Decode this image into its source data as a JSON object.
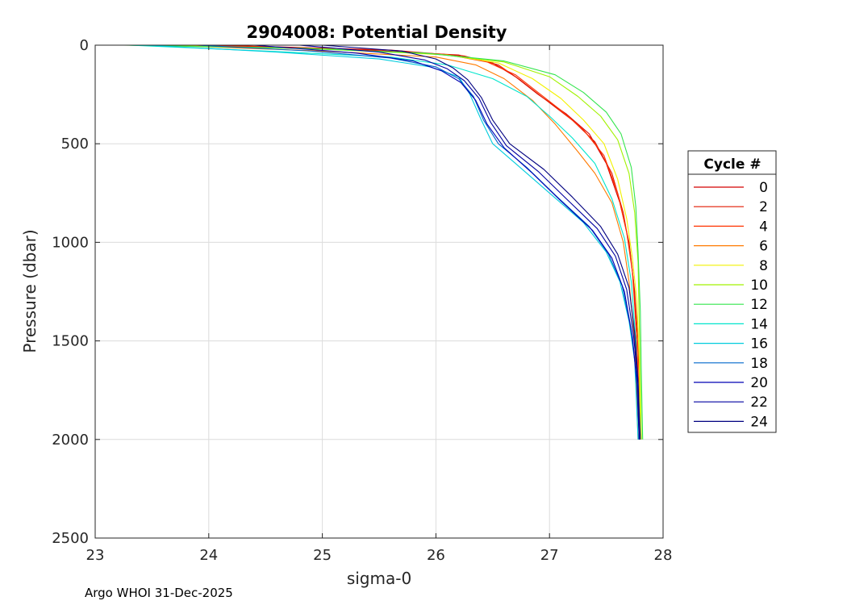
{
  "chart_data": {
    "type": "line",
    "title": "2904008: Potential Density",
    "xlabel": "sigma-0",
    "ylabel": "Pressure (dbar)",
    "xlim": [
      23,
      28
    ],
    "ylim": [
      0,
      2500
    ],
    "y_reversed": true,
    "xticks": [
      "23",
      "24",
      "25",
      "26",
      "27",
      "28"
    ],
    "yticks": [
      "0",
      "500",
      "1000",
      "1500",
      "2000",
      "2500"
    ],
    "grid": true,
    "legend": {
      "title": "Cycle #",
      "position": "right-outside",
      "entries": [
        "0",
        "2",
        "4",
        "6",
        "8",
        "10",
        "12",
        "14",
        "16",
        "18",
        "20",
        "22",
        "24"
      ]
    },
    "series": [
      {
        "name": "0",
        "color": "#d40000",
        "points": [
          [
            23.9,
            0
          ],
          [
            25.4,
            25
          ],
          [
            26.2,
            50
          ],
          [
            26.5,
            90
          ],
          [
            26.7,
            160
          ],
          [
            26.9,
            250
          ],
          [
            27.15,
            350
          ],
          [
            27.35,
            450
          ],
          [
            27.5,
            600
          ],
          [
            27.62,
            800
          ],
          [
            27.7,
            1000
          ],
          [
            27.74,
            1200
          ],
          [
            27.77,
            1500
          ],
          [
            27.79,
            2000
          ]
        ]
      },
      {
        "name": "2",
        "color": "#e31a00",
        "points": [
          [
            24.1,
            0
          ],
          [
            25.6,
            25
          ],
          [
            26.25,
            55
          ],
          [
            26.55,
            100
          ],
          [
            26.75,
            180
          ],
          [
            26.95,
            270
          ],
          [
            27.2,
            380
          ],
          [
            27.4,
            490
          ],
          [
            27.55,
            650
          ],
          [
            27.65,
            850
          ],
          [
            27.71,
            1050
          ],
          [
            27.75,
            1250
          ],
          [
            27.78,
            1500
          ],
          [
            27.8,
            2000
          ]
        ]
      },
      {
        "name": "4",
        "color": "#ff3300",
        "points": [
          [
            23.8,
            0
          ],
          [
            25.2,
            22
          ],
          [
            26.1,
            48
          ],
          [
            26.45,
            85
          ],
          [
            26.7,
            150
          ],
          [
            26.9,
            240
          ],
          [
            27.1,
            330
          ],
          [
            27.3,
            430
          ],
          [
            27.48,
            560
          ],
          [
            27.6,
            750
          ],
          [
            27.68,
            950
          ],
          [
            27.73,
            1150
          ],
          [
            27.77,
            1500
          ],
          [
            27.79,
            2000
          ]
        ]
      },
      {
        "name": "6",
        "color": "#ff7a00",
        "points": [
          [
            23.6,
            0
          ],
          [
            25.0,
            30
          ],
          [
            26.0,
            60
          ],
          [
            26.35,
            100
          ],
          [
            26.6,
            170
          ],
          [
            26.85,
            280
          ],
          [
            27.05,
            400
          ],
          [
            27.25,
            540
          ],
          [
            27.4,
            650
          ],
          [
            27.55,
            800
          ],
          [
            27.65,
            1000
          ],
          [
            27.7,
            1200
          ],
          [
            27.75,
            1500
          ],
          [
            27.78,
            2000
          ]
        ]
      },
      {
        "name": "8",
        "color": "#f2f200",
        "points": [
          [
            23.5,
            0
          ],
          [
            25.1,
            20
          ],
          [
            26.1,
            50
          ],
          [
            26.55,
            90
          ],
          [
            26.85,
            170
          ],
          [
            27.1,
            270
          ],
          [
            27.3,
            380
          ],
          [
            27.48,
            500
          ],
          [
            27.6,
            680
          ],
          [
            27.68,
            880
          ],
          [
            27.73,
            1080
          ],
          [
            27.77,
            1300
          ],
          [
            27.79,
            1600
          ],
          [
            27.8,
            2000
          ]
        ]
      },
      {
        "name": "10",
        "color": "#a2f200",
        "points": [
          [
            23.3,
            0
          ],
          [
            24.9,
            18
          ],
          [
            26.0,
            45
          ],
          [
            26.6,
            85
          ],
          [
            27.0,
            160
          ],
          [
            27.25,
            260
          ],
          [
            27.45,
            360
          ],
          [
            27.6,
            480
          ],
          [
            27.7,
            650
          ],
          [
            27.75,
            850
          ],
          [
            27.78,
            1100
          ],
          [
            27.79,
            1400
          ],
          [
            27.8,
            1700
          ],
          [
            27.81,
            2000
          ]
        ]
      },
      {
        "name": "12",
        "color": "#33e54d",
        "points": [
          [
            23.25,
            0
          ],
          [
            24.8,
            15
          ],
          [
            25.9,
            40
          ],
          [
            26.6,
            80
          ],
          [
            27.05,
            150
          ],
          [
            27.3,
            240
          ],
          [
            27.5,
            340
          ],
          [
            27.63,
            450
          ],
          [
            27.72,
            620
          ],
          [
            27.76,
            820
          ],
          [
            27.78,
            1050
          ],
          [
            27.8,
            1350
          ],
          [
            27.81,
            1700
          ],
          [
            27.82,
            2000
          ]
        ]
      },
      {
        "name": "14",
        "color": "#00e5cc",
        "points": [
          [
            23.3,
            0
          ],
          [
            24.5,
            30
          ],
          [
            25.6,
            60
          ],
          [
            26.1,
            100
          ],
          [
            26.5,
            170
          ],
          [
            26.8,
            260
          ],
          [
            27.0,
            360
          ],
          [
            27.2,
            470
          ],
          [
            27.4,
            600
          ],
          [
            27.55,
            780
          ],
          [
            27.66,
            980
          ],
          [
            27.72,
            1200
          ],
          [
            27.76,
            1500
          ],
          [
            27.79,
            2000
          ]
        ]
      },
      {
        "name": "16",
        "color": "#00ccdd",
        "points": [
          [
            23.45,
            0
          ],
          [
            24.6,
            35
          ],
          [
            25.5,
            70
          ],
          [
            25.95,
            110
          ],
          [
            26.2,
            160
          ],
          [
            26.3,
            250
          ],
          [
            26.4,
            380
          ],
          [
            26.5,
            500
          ],
          [
            26.7,
            600
          ],
          [
            27.0,
            750
          ],
          [
            27.3,
            900
          ],
          [
            27.5,
            1050
          ],
          [
            27.62,
            1200
          ],
          [
            27.7,
            1400
          ],
          [
            27.75,
            1600
          ],
          [
            27.78,
            2000
          ]
        ]
      },
      {
        "name": "18",
        "color": "#0066cc",
        "points": [
          [
            23.9,
            0
          ],
          [
            24.9,
            30
          ],
          [
            25.6,
            65
          ],
          [
            26.0,
            110
          ],
          [
            26.2,
            170
          ],
          [
            26.33,
            260
          ],
          [
            26.42,
            380
          ],
          [
            26.55,
            500
          ],
          [
            26.8,
            620
          ],
          [
            27.05,
            760
          ],
          [
            27.35,
            920
          ],
          [
            27.52,
            1060
          ],
          [
            27.64,
            1220
          ],
          [
            27.72,
            1450
          ],
          [
            27.77,
            1700
          ],
          [
            27.79,
            2000
          ]
        ]
      },
      {
        "name": "20",
        "color": "#0000b3",
        "points": [
          [
            24.4,
            0
          ],
          [
            25.3,
            40
          ],
          [
            25.8,
            80
          ],
          [
            26.05,
            130
          ],
          [
            26.22,
            190
          ],
          [
            26.35,
            280
          ],
          [
            26.45,
            400
          ],
          [
            26.6,
            520
          ],
          [
            26.85,
            650
          ],
          [
            27.1,
            790
          ],
          [
            27.38,
            940
          ],
          [
            27.55,
            1080
          ],
          [
            27.66,
            1250
          ],
          [
            27.73,
            1480
          ],
          [
            27.77,
            1720
          ],
          [
            27.79,
            2000
          ]
        ]
      },
      {
        "name": "22",
        "color": "#0000a0",
        "points": [
          [
            24.8,
            0
          ],
          [
            25.5,
            35
          ],
          [
            25.9,
            75
          ],
          [
            26.1,
            120
          ],
          [
            26.25,
            180
          ],
          [
            26.38,
            270
          ],
          [
            26.48,
            390
          ],
          [
            26.62,
            510
          ],
          [
            26.9,
            640
          ],
          [
            27.15,
            780
          ],
          [
            27.42,
            930
          ],
          [
            27.58,
            1070
          ],
          [
            27.68,
            1240
          ],
          [
            27.74,
            1470
          ],
          [
            27.78,
            1720
          ],
          [
            27.79,
            2000
          ]
        ]
      },
      {
        "name": "24",
        "color": "#000080",
        "points": [
          [
            25.0,
            0
          ],
          [
            25.7,
            30
          ],
          [
            26.0,
            70
          ],
          [
            26.15,
            115
          ],
          [
            26.28,
            175
          ],
          [
            26.4,
            265
          ],
          [
            26.5,
            380
          ],
          [
            26.65,
            500
          ],
          [
            26.95,
            630
          ],
          [
            27.2,
            770
          ],
          [
            27.45,
            920
          ],
          [
            27.6,
            1060
          ],
          [
            27.7,
            1230
          ],
          [
            27.75,
            1460
          ],
          [
            27.78,
            1710
          ],
          [
            27.8,
            2000
          ]
        ]
      }
    ]
  },
  "footer": "Argo WHOI 31-Dec-2025"
}
